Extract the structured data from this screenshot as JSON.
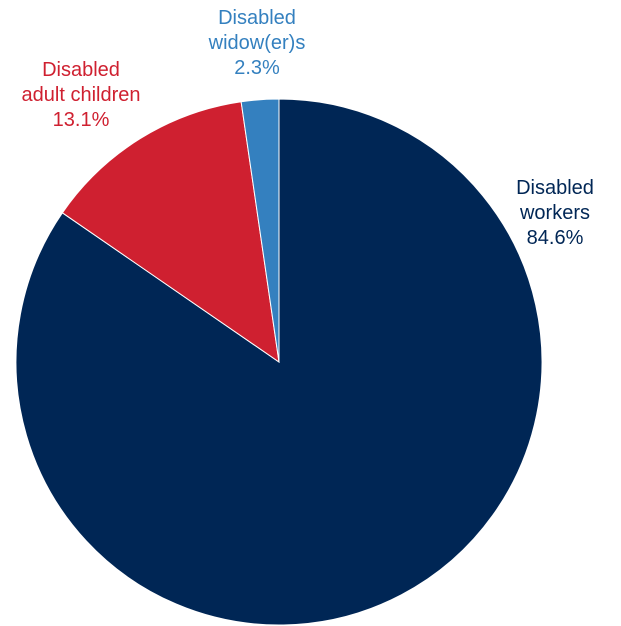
{
  "chart_data": {
    "type": "pie",
    "start_angle_deg": 0,
    "direction": "clockwise",
    "slices": [
      {
        "label_lines": [
          "Disabled",
          "workers"
        ],
        "value": 84.6,
        "value_text": "84.6%",
        "color": "#002655"
      },
      {
        "label_lines": [
          "Disabled",
          "adult children"
        ],
        "value": 13.1,
        "value_text": "13.1%",
        "color": "#cf2030"
      },
      {
        "label_lines": [
          "Disabled",
          "widow(er)s"
        ],
        "value": 2.3,
        "value_text": "2.3%",
        "color": "#3480bf"
      }
    ]
  }
}
